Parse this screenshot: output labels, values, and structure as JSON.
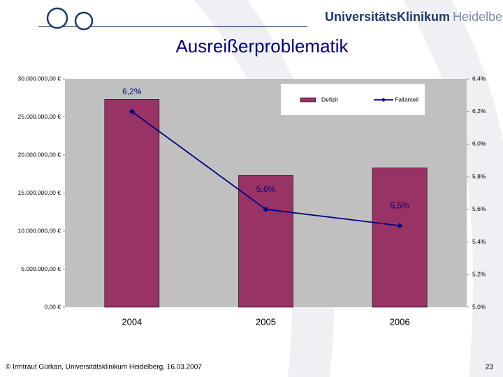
{
  "header": {
    "brand_bold": "UniversitätsKlinikum",
    "brand_light": "Heidelberg"
  },
  "chart_data": {
    "type": "bar",
    "title": "Ausreißerproblematik",
    "categories": [
      "2004",
      "2005",
      "2006"
    ],
    "series": [
      {
        "name": "Defizit",
        "color": "#993366",
        "values": [
          27300000,
          17300000,
          18300000
        ]
      },
      {
        "name": "Fallanteil",
        "type": "line",
        "axis": "y2",
        "color": "#000080",
        "values": [
          6.2,
          5.6,
          5.5
        ],
        "value_labels": [
          "6,2%",
          "5,6%",
          "5,5%"
        ]
      }
    ],
    "ylim": [
      0,
      30000000
    ],
    "yticks": [
      {
        "value": 0,
        "label": "0,00 €"
      },
      {
        "value": 5000000,
        "label": "5.000.000,00 €"
      },
      {
        "value": 10000000,
        "label": "10.000.000,00 €"
      },
      {
        "value": 15000000,
        "label": "15.000.000,00 €"
      },
      {
        "value": 20000000,
        "label": "20.000.000,00 €"
      },
      {
        "value": 25000000,
        "label": "25.000.000,00 €"
      },
      {
        "value": 30000000,
        "label": "30.000.000,00 €"
      }
    ],
    "y2lim": [
      5.0,
      6.4
    ],
    "y2ticks": [
      {
        "value": 5.0,
        "label": "5,0%"
      },
      {
        "value": 5.2,
        "label": "5,2%"
      },
      {
        "value": 5.4,
        "label": "5,4%"
      },
      {
        "value": 5.6,
        "label": "5,6%"
      },
      {
        "value": 5.8,
        "label": "5,8%"
      },
      {
        "value": 6.0,
        "label": "6,0%"
      },
      {
        "value": 6.2,
        "label": "6,2%"
      },
      {
        "value": 6.4,
        "label": "6,4%"
      }
    ],
    "grid": false,
    "legend": "top-right",
    "plot_background": "#c0c0c0"
  },
  "footer": {
    "credit": "© Irmtraut Gürkan, Universitätsklinikum Heidelberg, 16.03.2007",
    "page": "23"
  }
}
